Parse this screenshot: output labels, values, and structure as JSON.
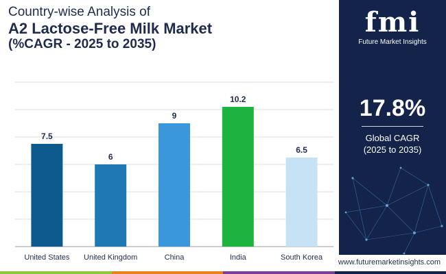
{
  "title": {
    "line1": "Country-wise Analysis of",
    "line2": "A2 Lactose-Free Milk Market",
    "line3": "(%CAGR - 2025 to 2035)"
  },
  "chart_data": {
    "type": "bar",
    "categories": [
      "United States",
      "United Kingdom",
      "China",
      "India",
      "South Korea"
    ],
    "values": [
      7.5,
      6,
      9,
      10.2,
      6.5
    ],
    "colors": [
      "#0d5a8f",
      "#1f78b4",
      "#3b97dc",
      "#1db33e",
      "#c7e2f5"
    ],
    "ylim": [
      0,
      12
    ],
    "grid": true,
    "title": "",
    "xlabel": "",
    "ylabel": ""
  },
  "sidebar": {
    "logo_text": "fmi",
    "logo_subtitle": "Future Market Insights",
    "cagr_value": "17.8%",
    "cagr_label_line1": "Global CAGR",
    "cagr_label_line2": "(2025 to 2035)"
  },
  "footer": {
    "website": "www.futuremarketinsights.com",
    "bar_colors": [
      "#8dc63f",
      "#e8821e",
      "#7c3f98",
      "#14234a"
    ]
  },
  "colors": {
    "navy": "#14234a",
    "title": "#1f2b4d"
  }
}
